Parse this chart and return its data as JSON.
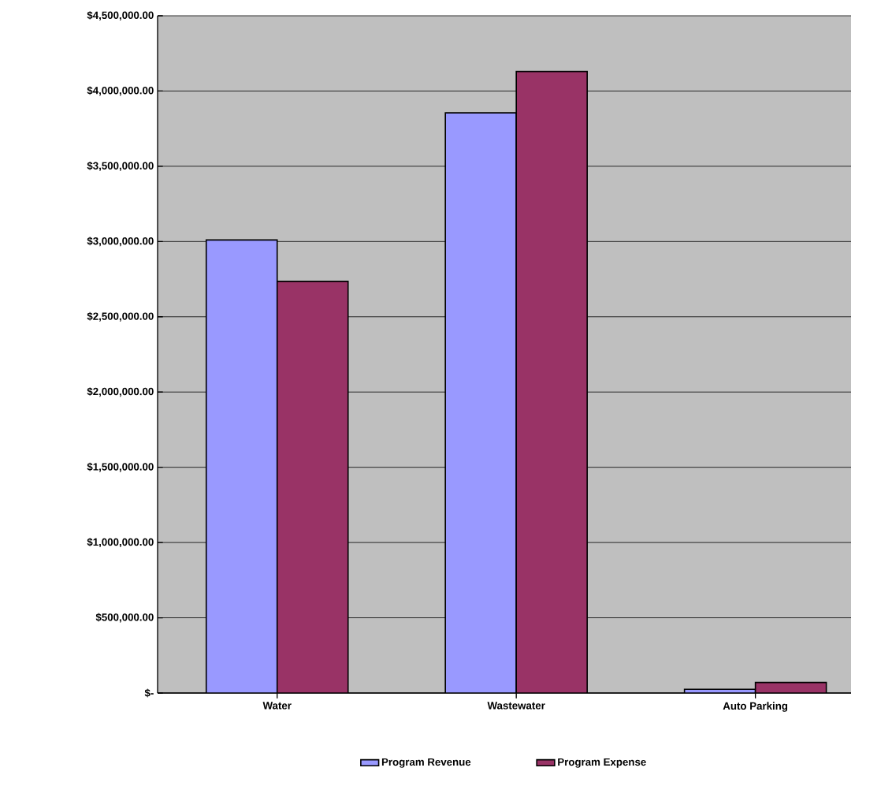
{
  "chart_data": {
    "type": "bar",
    "categories": [
      "Water",
      "Wastewater",
      "Auto Parking"
    ],
    "series": [
      {
        "name": "Program Revenue",
        "color": "#9999ff",
        "values": [
          3010000,
          3855000,
          25000
        ]
      },
      {
        "name": "Program Expense",
        "color": "#993366",
        "values": [
          2735000,
          4130000,
          70000
        ]
      }
    ],
    "ylim": [
      0,
      4500000
    ],
    "yticks": [
      {
        "value": 0,
        "label": "$-"
      },
      {
        "value": 500000,
        "label": "$500,000.00"
      },
      {
        "value": 1000000,
        "label": "$1,000,000.00"
      },
      {
        "value": 1500000,
        "label": "$1,500,000.00"
      },
      {
        "value": 2000000,
        "label": "$2,000,000.00"
      },
      {
        "value": 2500000,
        "label": "$2,500,000.00"
      },
      {
        "value": 3000000,
        "label": "$3,000,000.00"
      },
      {
        "value": 3500000,
        "label": "$3,500,000.00"
      },
      {
        "value": 4000000,
        "label": "$4,000,000.00"
      },
      {
        "value": 4500000,
        "label": "$4,500,000.00"
      }
    ],
    "grid": "y",
    "legend": "bottom"
  }
}
